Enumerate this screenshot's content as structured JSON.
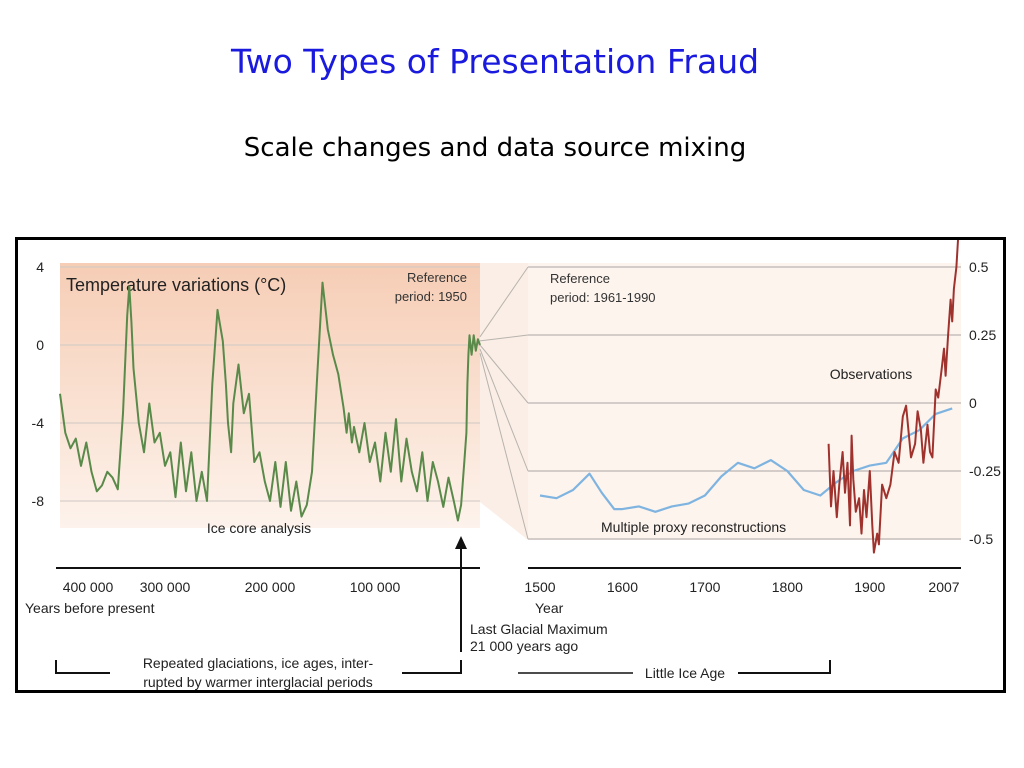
{
  "slide": {
    "title": "Two Types of Presentation Fraud",
    "subtitle": "Scale changes and data source mixing"
  },
  "colors": {
    "title": "#1a1adf",
    "ice_core_line": "#5a8a4a",
    "proxy_line": "#7fb4e0",
    "observations_line": "#a0322e",
    "panel_bg_top": "#f6cdb5",
    "panel_bg_bottom": "#fdf3ec"
  },
  "chart_data": [
    {
      "type": "line",
      "title": "Temperature variations (°C)",
      "reference_note": [
        "Reference",
        "period: 1950"
      ],
      "annotation": "Ice core analysis",
      "x_unit_label": "Years before present",
      "x_ticks": [
        "400 000",
        "300 000",
        "200 000",
        "100 000"
      ],
      "x_tick_values": [
        400000,
        300000,
        200000,
        100000
      ],
      "xlim": [
        400000,
        0
      ],
      "y_ticks": [
        "4",
        "0",
        "-4",
        "-8"
      ],
      "y_tick_values": [
        4,
        0,
        -4,
        -8
      ],
      "ylim": [
        -9.5,
        4.5
      ],
      "grid": true,
      "series": [
        {
          "x": [
            400000,
            395000,
            390000,
            385000,
            380000,
            375000,
            370000,
            365000,
            360000,
            355000,
            350000,
            345000,
            340000,
            336000,
            334000,
            332000,
            330000,
            325000,
            320000,
            315000,
            310000,
            305000,
            300000,
            295000,
            290000,
            285000,
            280000,
            275000,
            270000,
            265000,
            260000,
            255000,
            250000,
            245000,
            242000,
            240000,
            237000,
            235000,
            230000,
            225000,
            220000,
            215000,
            210000,
            205000,
            200000,
            195000,
            190000,
            185000,
            180000,
            175000,
            170000,
            165000,
            160000,
            155000,
            150000,
            145000,
            140000,
            135000,
            130000,
            127000,
            125000,
            122000,
            120000,
            115000,
            110000,
            105000,
            100000,
            95000,
            90000,
            85000,
            80000,
            75000,
            70000,
            65000,
            60000,
            55000,
            50000,
            45000,
            40000,
            35000,
            30000,
            25000,
            21000,
            18000,
            15000,
            13000,
            12000,
            11000,
            10000,
            8000,
            6000,
            4000,
            2000,
            0
          ],
          "y": [
            -2.5,
            -4.5,
            -5.3,
            -4.8,
            -6.2,
            -5.0,
            -6.5,
            -7.5,
            -7.2,
            -6.5,
            -6.8,
            -7.4,
            -3.5,
            1.5,
            3.0,
            1.2,
            -1.2,
            -4.0,
            -5.5,
            -3.0,
            -5.0,
            -4.5,
            -6.2,
            -5.5,
            -7.8,
            -5.0,
            -7.5,
            -5.5,
            -8.0,
            -6.5,
            -8.0,
            -2.0,
            1.8,
            0.2,
            -2.0,
            -4.0,
            -5.5,
            -3.0,
            -1.0,
            -3.5,
            -2.5,
            -6.0,
            -5.5,
            -7.0,
            -8.0,
            -6.0,
            -8.3,
            -6.0,
            -8.5,
            -7.0,
            -8.8,
            -8.2,
            -6.5,
            -1.5,
            3.2,
            0.8,
            -0.5,
            -1.5,
            -3.2,
            -4.5,
            -3.5,
            -5.0,
            -4.2,
            -5.5,
            -4.0,
            -6.0,
            -5.0,
            -7.0,
            -4.5,
            -6.5,
            -3.8,
            -7.0,
            -4.8,
            -6.5,
            -7.5,
            -5.5,
            -8.0,
            -6.0,
            -7.0,
            -8.3,
            -6.8,
            -8.0,
            -9.0,
            -8.2,
            -6.0,
            -4.5,
            -2.0,
            -0.5,
            0.5,
            -0.5,
            0.5,
            -0.3,
            0.3,
            0.0
          ]
        }
      ]
    },
    {
      "type": "line",
      "reference_note": [
        "Reference",
        "period: 1961-1990"
      ],
      "x_unit_label": "Year",
      "x_ticks": [
        "1500",
        "1600",
        "1700",
        "1800",
        "1900",
        "2007"
      ],
      "x_tick_values": [
        1500,
        1600,
        1700,
        1800,
        1900,
        2007
      ],
      "xlim": [
        1500,
        2007
      ],
      "y_ticks": [
        "0.5",
        "0.25",
        "0",
        "-0.25",
        "-0.5"
      ],
      "y_tick_values": [
        0.5,
        0.25,
        0,
        -0.25,
        -0.5
      ],
      "ylim": [
        -0.62,
        0.62
      ],
      "grid": true,
      "series": [
        {
          "name": "Multiple proxy reconstructions",
          "x": [
            1500,
            1520,
            1540,
            1560,
            1575,
            1590,
            1600,
            1620,
            1640,
            1660,
            1680,
            1700,
            1720,
            1740,
            1760,
            1780,
            1800,
            1820,
            1840,
            1860,
            1880,
            1900,
            1920,
            1940,
            1960,
            1980,
            2000
          ],
          "y": [
            -0.34,
            -0.35,
            -0.32,
            -0.26,
            -0.33,
            -0.39,
            -0.39,
            -0.38,
            -0.4,
            -0.38,
            -0.37,
            -0.34,
            -0.27,
            -0.22,
            -0.24,
            -0.21,
            -0.25,
            -0.32,
            -0.34,
            -0.29,
            -0.25,
            -0.23,
            -0.22,
            -0.13,
            -0.1,
            -0.04,
            -0.02
          ]
        },
        {
          "name": "Observations",
          "x": [
            1850,
            1853,
            1856,
            1860,
            1863,
            1867,
            1870,
            1873,
            1876,
            1878,
            1880,
            1883,
            1887,
            1890,
            1893,
            1896,
            1900,
            1903,
            1905,
            1909,
            1911,
            1915,
            1920,
            1925,
            1930,
            1935,
            1940,
            1944,
            1950,
            1955,
            1958,
            1962,
            1965,
            1970,
            1973,
            1976,
            1980,
            1983,
            1987,
            1990,
            1992,
            1995,
            1998,
            2000,
            2002,
            2005,
            2007
          ],
          "y": [
            -0.15,
            -0.38,
            -0.25,
            -0.42,
            -0.3,
            -0.18,
            -0.33,
            -0.22,
            -0.45,
            -0.12,
            -0.28,
            -0.4,
            -0.35,
            -0.48,
            -0.32,
            -0.42,
            -0.25,
            -0.45,
            -0.55,
            -0.48,
            -0.52,
            -0.3,
            -0.35,
            -0.3,
            -0.18,
            -0.22,
            -0.05,
            -0.01,
            -0.2,
            -0.15,
            -0.03,
            -0.1,
            -0.22,
            -0.08,
            -0.18,
            -0.2,
            0.05,
            0.02,
            0.12,
            0.2,
            0.1,
            0.25,
            0.38,
            0.3,
            0.42,
            0.5,
            0.62
          ]
        }
      ]
    }
  ],
  "bottom_annotations": {
    "lgm_label": [
      "Last Glacial Maximum",
      "21 000 years ago"
    ],
    "glaciations_label": [
      "Repeated glaciations, ice ages, inter-",
      "rupted by warmer interglacial periods"
    ],
    "little_ice_age_label": "Little Ice Age"
  }
}
